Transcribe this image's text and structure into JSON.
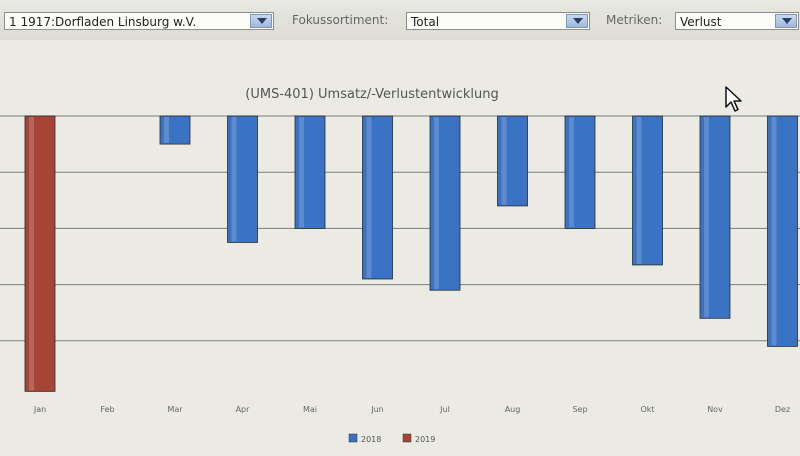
{
  "toolbar": {
    "store_value": "1 1917:Dorfladen Linsburg w.V.",
    "focus_label": "Fokussortiment:",
    "focus_value": "Total",
    "metrics_label": "Metriken:",
    "metrics_value": "Verlust"
  },
  "chart_data": {
    "type": "bar",
    "title": "(UMS-401) Umsatz/-Verlustentwicklung",
    "categories": [
      "Jan",
      "Feb",
      "Mar",
      "Apr",
      "Mai",
      "Jun",
      "Jul",
      "Aug",
      "Sep",
      "Okt",
      "Nov",
      "Dez"
    ],
    "series": [
      {
        "name": "2018",
        "color": "#3a72c4",
        "values": [
          null,
          null,
          -10,
          -45,
          -40,
          -58,
          -62,
          -32,
          -40,
          -53,
          -72,
          -82
        ]
      },
      {
        "name": "2019",
        "color": "#a64536",
        "values": [
          -98,
          null,
          null,
          null,
          null,
          null,
          null,
          null,
          null,
          null,
          null,
          null
        ]
      }
    ],
    "ylim": [
      -100,
      0
    ],
    "grid": true,
    "legend_position": "bottom"
  }
}
